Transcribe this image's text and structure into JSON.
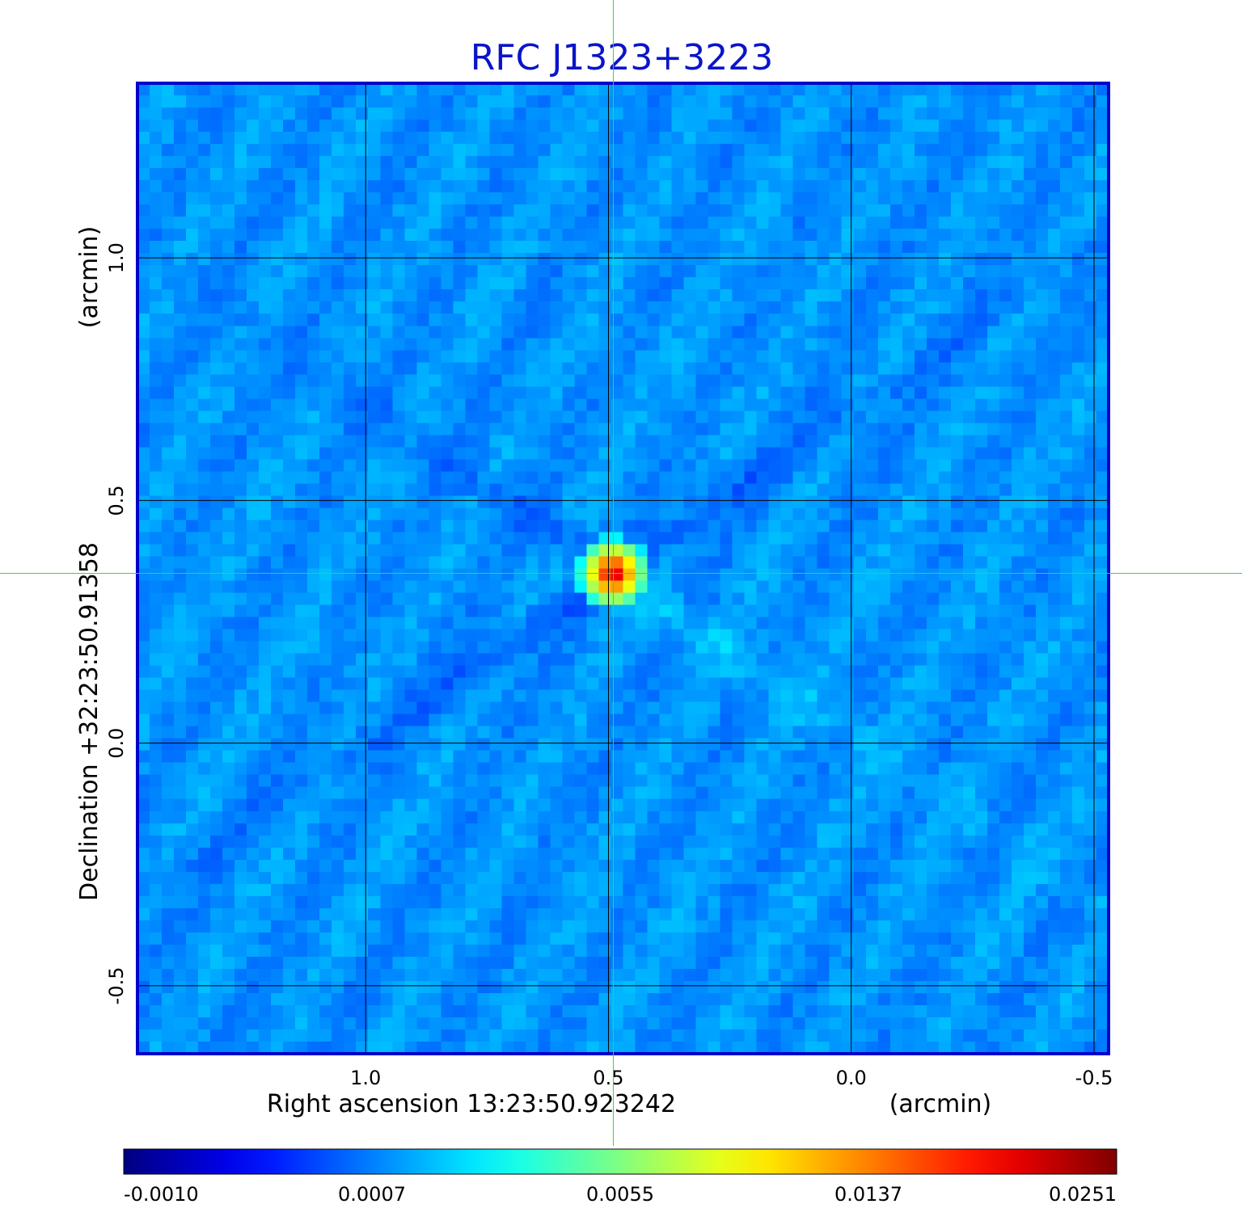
{
  "chart_data": {
    "type": "heatmap",
    "title": "RFC J1323+3223",
    "xlabel": "Right ascension  13:23:50.923242",
    "xunit": "(arcmin)",
    "ylabel": "Declination  +32:23:50.91358",
    "yunit": "(arcmin)",
    "x_ticks": [
      1.0,
      0.5,
      0.0,
      -0.5
    ],
    "x_tick_labels": [
      "1.0",
      "0.5",
      "0.0",
      "-0.5"
    ],
    "y_ticks": [
      1.0,
      0.5,
      0.0,
      -0.5
    ],
    "y_tick_labels": [
      "1.0",
      "0.5",
      "0.0",
      "-0.5"
    ],
    "xlim": [
      1.47,
      -0.53
    ],
    "ylim": [
      -0.64,
      1.36
    ],
    "grid": true,
    "crosshair": {
      "x": 0.49,
      "y": 0.35
    },
    "peak": {
      "x": 0.49,
      "y": 0.35,
      "value": 0.0251
    },
    "colorbar": {
      "colormap": "jet",
      "tick_labels": [
        "-0.0010",
        "0.0007",
        "0.0055",
        "0.0137",
        "0.0251"
      ]
    },
    "colors": {
      "title": "#0a14c8",
      "frame": "#0000cc",
      "grid": "#000000",
      "crosshair": "#33dd33"
    }
  }
}
